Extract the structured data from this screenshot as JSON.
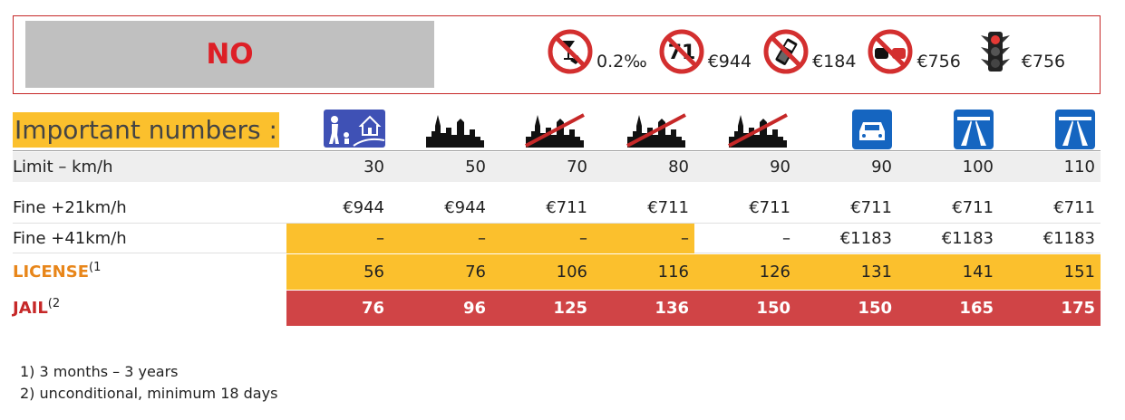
{
  "banner": {
    "verdict": "NO",
    "penalties": [
      {
        "icon": "no-drink-driving-icon",
        "value": "0.2‰"
      },
      {
        "icon": "no-red-light-sign-icon",
        "value": "€944",
        "sign_number": "71"
      },
      {
        "icon": "no-phone-icon",
        "value": "€184"
      },
      {
        "icon": "no-overtaking-icon",
        "value": "€756"
      },
      {
        "icon": "traffic-light-icon",
        "value": "€756"
      }
    ]
  },
  "table": {
    "title": "Important numbers :",
    "zones": [
      {
        "icon": "residential-zone-icon"
      },
      {
        "icon": "city-icon"
      },
      {
        "icon": "city-end-icon"
      },
      {
        "icon": "city-end-icon"
      },
      {
        "icon": "city-end-icon"
      },
      {
        "icon": "motor-road-icon"
      },
      {
        "icon": "motorway-icon"
      },
      {
        "icon": "motorway-icon"
      }
    ],
    "rows": {
      "limit": {
        "label": "Limit – km/h",
        "values": [
          "30",
          "50",
          "70",
          "80",
          "90",
          "90",
          "100",
          "110"
        ]
      },
      "fine21": {
        "label": "Fine +21km/h",
        "values": [
          "€944",
          "€944",
          "€711",
          "€711",
          "€711",
          "€711",
          "€711",
          "€711"
        ]
      },
      "fine41": {
        "label": "Fine +41km/h",
        "values": [
          "–",
          "–",
          "–",
          "–",
          "–",
          "€1183",
          "€1183",
          "€1183"
        ]
      },
      "license": {
        "label": "LICENSE",
        "sup": "(1",
        "values": [
          "56",
          "76",
          "106",
          "116",
          "126",
          "131",
          "141",
          "151"
        ]
      },
      "jail": {
        "label": "JAIL",
        "sup": "(2",
        "values": [
          "76",
          "96",
          "125",
          "136",
          "150",
          "150",
          "165",
          "175"
        ]
      }
    }
  },
  "footnotes": {
    "note1": "1) 3 months – 3 years",
    "note2": "2) unconditional, minimum 18 days"
  },
  "colors": {
    "accent_yellow": "#fbc02d",
    "jail_red": "#d04446",
    "verdict_red": "#dd1f26",
    "sign_red": "#d32f2f",
    "sign_blue": "#1565c0"
  }
}
